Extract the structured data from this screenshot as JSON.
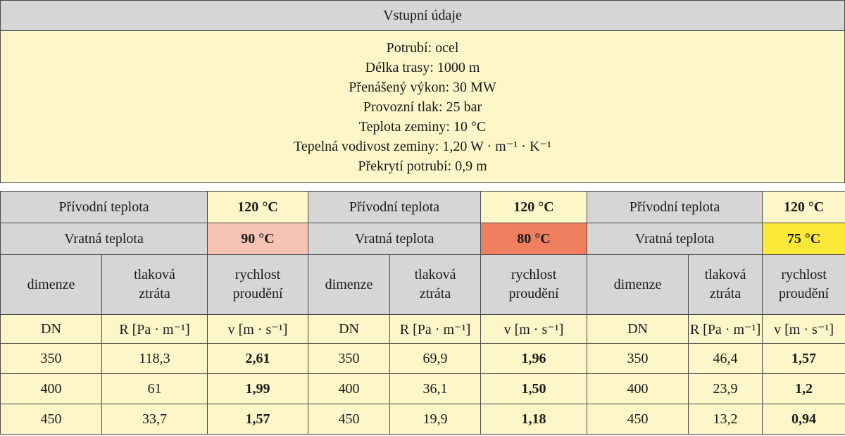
{
  "inputs": {
    "title": "Vstupní údaje",
    "lines": [
      "Potrubí: ocel",
      "Délka trasy: 1000 m",
      "Přenášený výkon: 30 MW",
      "Provozní tlak: 25 bar",
      "Teplota zeminy: 10 °C",
      "Tepelná vodivost zeminy: 1,20 W · m⁻¹ · K⁻¹",
      "Překrytí potrubí: 0,9 m"
    ]
  },
  "colors": {
    "header_gray": "#d6d6d6",
    "cream": "#fdf6c8",
    "return_90": "#f6c3b5",
    "return_80": "#ef7f5f",
    "return_75": "#fbe93a"
  },
  "groups": [
    {
      "supply_label": "Přívodní teplota",
      "supply_value": "120 °C",
      "return_label": "Vratná teplota",
      "return_value": "90 °C",
      "headers": [
        "dimenze",
        "tlaková ztráta",
        "rychlost proudění"
      ],
      "units": [
        "DN",
        "R [Pa · m⁻¹]",
        "v [m · s⁻¹]"
      ],
      "rows": [
        [
          "350",
          "118,3",
          "2,61"
        ],
        [
          "400",
          "61",
          "1,99"
        ],
        [
          "450",
          "33,7",
          "1,57"
        ]
      ]
    },
    {
      "supply_label": "Přívodní teplota",
      "supply_value": "120 °C",
      "return_label": "Vratná teplota",
      "return_value": "80 °C",
      "headers": [
        "dimenze",
        "tlaková ztráta",
        "rychlost proudění"
      ],
      "units": [
        "DN",
        "R [Pa · m⁻¹]",
        "v [m · s⁻¹]"
      ],
      "rows": [
        [
          "350",
          "69,9",
          "1,96"
        ],
        [
          "400",
          "36,1",
          "1,50"
        ],
        [
          "450",
          "19,9",
          "1,18"
        ]
      ]
    },
    {
      "supply_label": "Přívodní teplota",
      "supply_value": "120 °C",
      "return_label": "Vratná teplota",
      "return_value": "75 °C",
      "headers": [
        "dimenze",
        "tlaková ztráta",
        "rychlost proudění"
      ],
      "units": [
        "DN",
        "R [Pa · m⁻¹]",
        "v [m · s⁻¹]"
      ],
      "rows": [
        [
          "350",
          "46,4",
          "1,57"
        ],
        [
          "400",
          "23,9",
          "1,2"
        ],
        [
          "450",
          "13,2",
          "0,94"
        ]
      ]
    }
  ]
}
